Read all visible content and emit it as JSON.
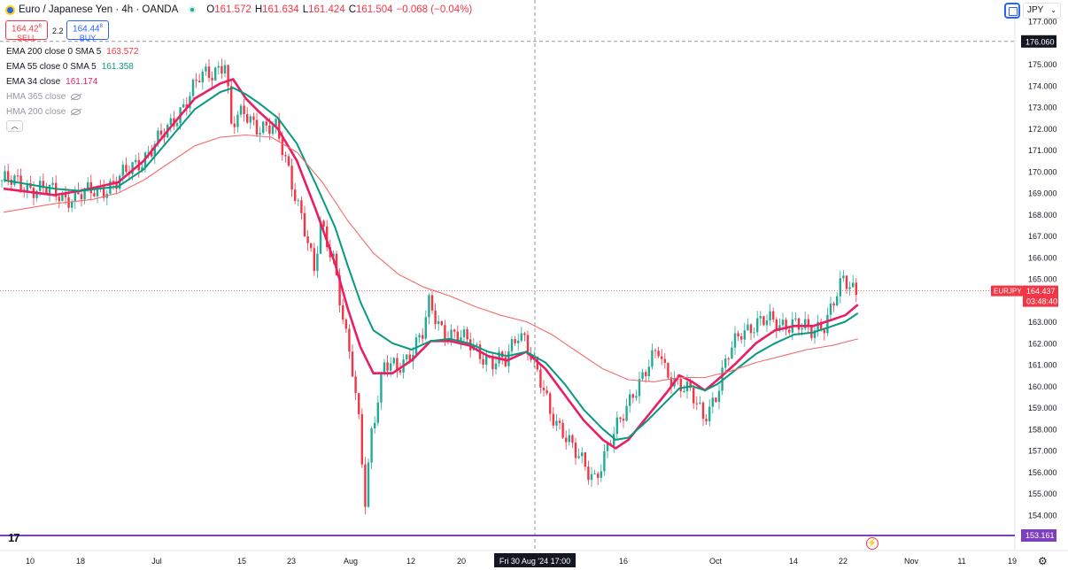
{
  "header": {
    "symbol": "Euro / Japanese Yen · 4h · OANDA",
    "o_label": "O",
    "o_val": "161.572",
    "h_label": "H",
    "h_val": "161.634",
    "l_label": "L",
    "l_val": "161.424",
    "c_label": "C",
    "c_val": "161.504",
    "change": "−0.068 (−0.04%)"
  },
  "trade": {
    "sell_price": "164.42",
    "sell_sup": "6",
    "sell_label": "SELL",
    "spread": "2.2",
    "buy_price": "164.44",
    "buy_sup": "8",
    "buy_label": "BUY"
  },
  "legend": [
    {
      "name": "EMA 200 close 0 SMA 5",
      "value": "163.572",
      "color": "#f23645"
    },
    {
      "name": "EMA 55 close 0 SMA 5",
      "value": "161.358",
      "color": "#089981"
    },
    {
      "name": "EMA 34 close",
      "value": "161.174",
      "color": "#e91e63"
    },
    {
      "name": "HMA 365 close",
      "value": "",
      "hidden": true
    },
    {
      "name": "HMA 200 close",
      "value": "",
      "hidden": true
    }
  ],
  "currency": "JPY",
  "collapse_icon": "chevron-up-icon",
  "colors": {
    "up": "#22ab94",
    "down": "#f23645",
    "ema200": "#f26d6d",
    "ema55": "#089981",
    "ema34": "#e91e63",
    "purple": "#7e3fbf",
    "dashed": "#9598a1"
  },
  "chart_data": {
    "type": "candlestick",
    "symbol": "EURJPY",
    "interval": "4h",
    "ylim": [
      153.161,
      177.0
    ],
    "y_ticks": [
      "177.000",
      "176.060",
      "175.000",
      "174.000",
      "173.000",
      "172.000",
      "171.000",
      "170.000",
      "169.000",
      "168.000",
      "167.000",
      "166.000",
      "165.000",
      "164.437",
      "163.000",
      "162.000",
      "161.000",
      "160.000",
      "159.000",
      "158.000",
      "157.000",
      "156.000",
      "155.000",
      "154.000",
      "153.161"
    ],
    "x_ticks": [
      "10",
      "18",
      "Jul",
      "15",
      "23",
      "Aug",
      "12",
      "20",
      "Fri 30 Aug '24  17:00",
      "16",
      "Oct",
      "14",
      "22",
      "Nov",
      "11",
      "19"
    ],
    "last_price_tag": "EURJPY",
    "last_price": "164.437",
    "countdown": "03:48:40",
    "crosshair_price": "176.060",
    "crosshair_time": "Fri 30 Aug '24  17:00",
    "bottom_line_value": "153.161",
    "price_path": [
      [
        0,
        169.6
      ],
      [
        6,
        169.2
      ],
      [
        10,
        168.8
      ],
      [
        14,
        169.0
      ],
      [
        18,
        169.5
      ],
      [
        22,
        170.6
      ],
      [
        26,
        171.9
      ],
      [
        29,
        173.4
      ],
      [
        31,
        174.3
      ],
      [
        33,
        174.6
      ],
      [
        35,
        175.2
      ],
      [
        36,
        172.1
      ],
      [
        38,
        172.7
      ],
      [
        40,
        172.2
      ],
      [
        43,
        171.9
      ],
      [
        45,
        170.1
      ],
      [
        47,
        168.0
      ],
      [
        49,
        165.2
      ],
      [
        50,
        167.5
      ],
      [
        52,
        166.1
      ],
      [
        54,
        162.2
      ],
      [
        55,
        160.6
      ],
      [
        56,
        158.3
      ],
      [
        57,
        154.8
      ],
      [
        58,
        158.0
      ],
      [
        60,
        160.9
      ],
      [
        62,
        160.8
      ],
      [
        64,
        161.6
      ],
      [
        66,
        162.4
      ],
      [
        67,
        163.7
      ],
      [
        69,
        162.7
      ],
      [
        71,
        162.4
      ],
      [
        73,
        162.0
      ],
      [
        75,
        161.6
      ],
      [
        77,
        161.1
      ],
      [
        79,
        161.1
      ],
      [
        81,
        162.6
      ],
      [
        82,
        162.3
      ],
      [
        84,
        160.5
      ],
      [
        86,
        158.8
      ],
      [
        88,
        158.0
      ],
      [
        90,
        156.8
      ],
      [
        92,
        156.0
      ],
      [
        93,
        155.8
      ],
      [
        95,
        157.1
      ],
      [
        97,
        158.3
      ],
      [
        99,
        159.8
      ],
      [
        101,
        160.7
      ],
      [
        103,
        161.6
      ],
      [
        104,
        160.8
      ],
      [
        106,
        160.2
      ],
      [
        108,
        159.6
      ],
      [
        110,
        158.6
      ],
      [
        112,
        159.6
      ],
      [
        114,
        161.4
      ],
      [
        116,
        162.6
      ],
      [
        118,
        162.9
      ],
      [
        120,
        163.0
      ],
      [
        122,
        162.9
      ],
      [
        124,
        163.0
      ],
      [
        126,
        162.6
      ],
      [
        127,
        162.5
      ],
      [
        129,
        163.0
      ],
      [
        131,
        164.3
      ],
      [
        132,
        164.8
      ],
      [
        134,
        164.4
      ]
    ],
    "series": [
      {
        "name": "EMA 34 close",
        "color": "#e91e63",
        "points": [
          [
            0,
            169.2
          ],
          [
            8,
            168.9
          ],
          [
            12,
            169.1
          ],
          [
            18,
            169.5
          ],
          [
            22,
            170.5
          ],
          [
            26,
            172.0
          ],
          [
            30,
            173.4
          ],
          [
            34,
            174.1
          ],
          [
            36,
            174.3
          ],
          [
            38,
            173.4
          ],
          [
            40,
            172.8
          ],
          [
            43,
            172.0
          ],
          [
            46,
            170.5
          ],
          [
            49,
            168.2
          ],
          [
            52,
            165.7
          ],
          [
            54,
            163.6
          ],
          [
            56,
            161.8
          ],
          [
            58,
            160.6
          ],
          [
            61,
            160.6
          ],
          [
            64,
            161.2
          ],
          [
            67,
            162.1
          ],
          [
            70,
            162.1
          ],
          [
            73,
            161.9
          ],
          [
            76,
            161.4
          ],
          [
            79,
            161.2
          ],
          [
            82,
            161.6
          ],
          [
            85,
            160.8
          ],
          [
            88,
            159.6
          ],
          [
            91,
            158.4
          ],
          [
            94,
            157.5
          ],
          [
            96,
            157.1
          ],
          [
            98,
            157.5
          ],
          [
            101,
            158.6
          ],
          [
            104,
            159.7
          ],
          [
            106,
            160.5
          ],
          [
            108,
            160.2
          ],
          [
            110,
            159.8
          ],
          [
            112,
            160.3
          ],
          [
            115,
            161.1
          ],
          [
            118,
            162.0
          ],
          [
            121,
            162.6
          ],
          [
            124,
            162.8
          ],
          [
            127,
            162.8
          ],
          [
            129,
            163.0
          ],
          [
            132,
            163.3
          ],
          [
            134,
            163.8
          ]
        ]
      },
      {
        "name": "EMA 55 close",
        "color": "#089981",
        "points": [
          [
            0,
            169.6
          ],
          [
            8,
            169.2
          ],
          [
            12,
            169.1
          ],
          [
            18,
            169.3
          ],
          [
            22,
            170.1
          ],
          [
            26,
            171.5
          ],
          [
            30,
            172.9
          ],
          [
            34,
            173.7
          ],
          [
            36,
            173.9
          ],
          [
            38,
            173.6
          ],
          [
            40,
            173.2
          ],
          [
            43,
            172.5
          ],
          [
            46,
            171.3
          ],
          [
            49,
            169.4
          ],
          [
            52,
            167.4
          ],
          [
            54,
            165.6
          ],
          [
            56,
            163.9
          ],
          [
            58,
            162.6
          ],
          [
            61,
            162.0
          ],
          [
            64,
            161.7
          ],
          [
            67,
            162.1
          ],
          [
            70,
            162.2
          ],
          [
            73,
            162.0
          ],
          [
            76,
            161.6
          ],
          [
            79,
            161.4
          ],
          [
            82,
            161.6
          ],
          [
            85,
            161.1
          ],
          [
            88,
            160.1
          ],
          [
            91,
            158.9
          ],
          [
            94,
            158.0
          ],
          [
            96,
            157.5
          ],
          [
            98,
            157.6
          ],
          [
            101,
            158.4
          ],
          [
            104,
            159.3
          ],
          [
            106,
            159.9
          ],
          [
            108,
            160.0
          ],
          [
            110,
            159.8
          ],
          [
            112,
            160.1
          ],
          [
            115,
            160.8
          ],
          [
            118,
            161.5
          ],
          [
            121,
            162.0
          ],
          [
            124,
            162.4
          ],
          [
            127,
            162.5
          ],
          [
            129,
            162.7
          ],
          [
            132,
            163.0
          ],
          [
            134,
            163.4
          ]
        ]
      },
      {
        "name": "EMA 200 close",
        "color": "#f26d6d",
        "points": [
          [
            0,
            168.1
          ],
          [
            8,
            168.5
          ],
          [
            14,
            168.7
          ],
          [
            18,
            169.0
          ],
          [
            22,
            169.6
          ],
          [
            26,
            170.4
          ],
          [
            30,
            171.2
          ],
          [
            34,
            171.6
          ],
          [
            38,
            171.7
          ],
          [
            42,
            171.6
          ],
          [
            46,
            170.9
          ],
          [
            50,
            169.5
          ],
          [
            54,
            167.7
          ],
          [
            58,
            166.2
          ],
          [
            62,
            165.2
          ],
          [
            66,
            164.6
          ],
          [
            70,
            164.2
          ],
          [
            74,
            163.7
          ],
          [
            78,
            163.3
          ],
          [
            82,
            163.0
          ],
          [
            86,
            162.4
          ],
          [
            90,
            161.6
          ],
          [
            94,
            160.8
          ],
          [
            98,
            160.3
          ],
          [
            102,
            160.2
          ],
          [
            106,
            160.4
          ],
          [
            110,
            160.4
          ],
          [
            114,
            160.7
          ],
          [
            118,
            161.1
          ],
          [
            122,
            161.4
          ],
          [
            126,
            161.7
          ],
          [
            130,
            161.9
          ],
          [
            134,
            162.2
          ]
        ]
      }
    ]
  }
}
